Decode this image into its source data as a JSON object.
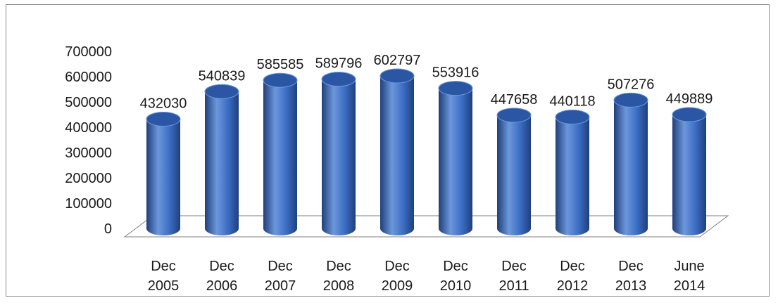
{
  "chart_data": {
    "type": "bar",
    "style": "3d-cylinder",
    "categories": [
      [
        "Dec",
        "2005"
      ],
      [
        "Dec",
        "2006"
      ],
      [
        "Dec",
        "2007"
      ],
      [
        "Dec",
        "2008"
      ],
      [
        "Dec",
        "2009"
      ],
      [
        "Dec",
        "2010"
      ],
      [
        "Dec",
        "2011"
      ],
      [
        "Dec",
        "2012"
      ],
      [
        "Dec",
        "2013"
      ],
      [
        "June",
        "2014"
      ]
    ],
    "values": [
      432030,
      540839,
      585585,
      589796,
      602797,
      553916,
      447658,
      440118,
      507276,
      449889
    ],
    "data_labels": [
      "432030",
      "540839",
      "585585",
      "589796",
      "602797",
      "553916",
      "447658",
      "440118",
      "507276",
      "449889"
    ],
    "y_ticks": [
      0,
      100000,
      200000,
      300000,
      400000,
      500000,
      600000,
      700000
    ],
    "ylim": [
      0,
      700000
    ],
    "title": "",
    "xlabel": "",
    "ylabel": "",
    "grid": false,
    "legend": "none",
    "colors": {
      "bar_dark": "#1f3f7a",
      "bar_mid": "#3a6bc2",
      "bar_light": "#6c97dc",
      "bar_top": "#2b56a3",
      "floor_stroke": "#7f7f7f"
    }
  }
}
